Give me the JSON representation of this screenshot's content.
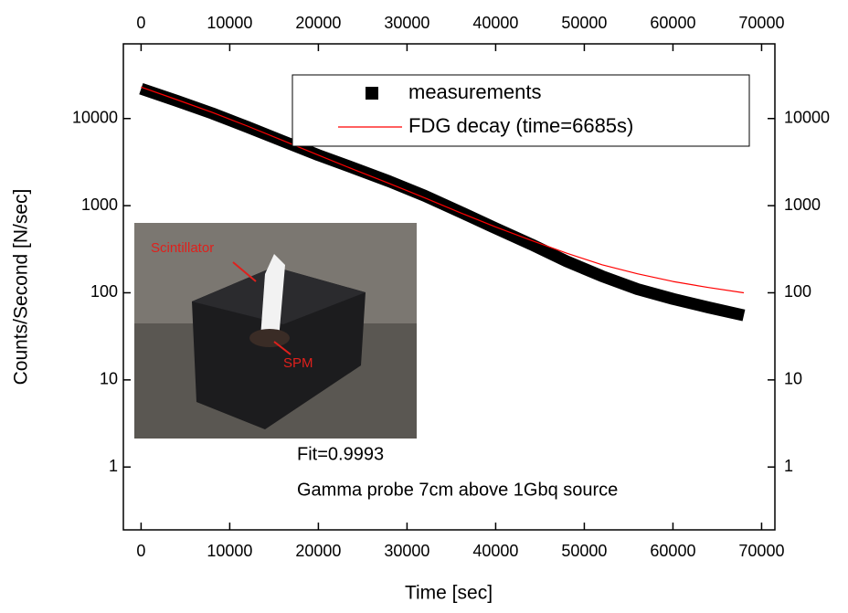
{
  "chart_data": {
    "type": "line",
    "xlabel": "Time [sec]",
    "ylabel": "Counts/Second [N/sec]",
    "x": [
      0,
      4000,
      8000,
      12000,
      16000,
      20000,
      24000,
      28000,
      32000,
      36000,
      40000,
      44000,
      48000,
      52000,
      56000,
      60000,
      64000,
      68000
    ],
    "series": [
      {
        "name": "measurements",
        "color": "#000000",
        "marker": "square",
        "values": [
          22000,
          16000,
          11500,
          8000,
          5500,
          3800,
          2700,
          1900,
          1300,
          850,
          550,
          360,
          230,
          155,
          110,
          85,
          68,
          55
        ]
      },
      {
        "name": "FDG decay (time=6685s)",
        "color": "#ff0000",
        "marker": "line",
        "values": [
          23000,
          16500,
          11800,
          8200,
          5600,
          3800,
          2600,
          1800,
          1230,
          830,
          570,
          400,
          285,
          210,
          165,
          135,
          115,
          100
        ]
      }
    ],
    "xlim": [
      -2000,
      71500
    ],
    "xticks": [
      0,
      10000,
      20000,
      30000,
      40000,
      50000,
      60000,
      70000
    ],
    "ylim": [
      0.19,
      72000
    ],
    "yticks": [
      1,
      10,
      100,
      1000,
      10000
    ],
    "ylog": true,
    "grid": false,
    "legend": "upper right",
    "annotations": [
      "Fit=0.9993",
      "Gamma probe 7cm above 1Gbq source"
    ],
    "inset_labels": [
      "Scintillator",
      "SPM"
    ]
  }
}
